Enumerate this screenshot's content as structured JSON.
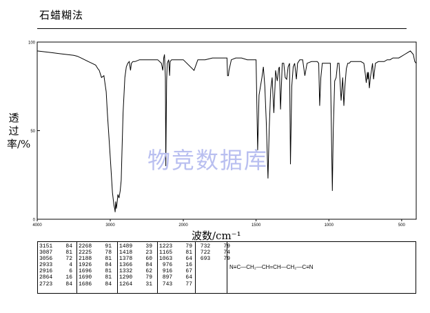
{
  "page": {
    "title": "石蜡糊法"
  },
  "chart_data": {
    "type": "line",
    "title": "",
    "xlabel": "波数/cm⁻¹",
    "ylabel": "透过率/%",
    "xlim": [
      4000,
      400
    ],
    "ylim": [
      0,
      100
    ],
    "x_ticks": [
      4000,
      3000,
      2000,
      1500,
      1000,
      500
    ],
    "x_tick_labels": [
      "4000",
      "3000",
      "2000",
      "1500",
      "1000",
      "500"
    ],
    "y_ticks": [
      0,
      50,
      100
    ],
    "y_tick_labels": [
      "0",
      "50",
      "100"
    ],
    "grid": false,
    "series": [
      {
        "name": "",
        "x": [
          4000,
          3900,
          3800,
          3700,
          3600,
          3500,
          3450,
          3400,
          3350,
          3300,
          3250,
          3200,
          3170,
          3151,
          3120,
          3087,
          3070,
          3056,
          3040,
          3000,
          2970,
          2950,
          2940,
          2933,
          2925,
          2916,
          2905,
          2895,
          2880,
          2864,
          2850,
          2840,
          2825,
          2800,
          2780,
          2760,
          2740,
          2723,
          2710,
          2690,
          2660,
          2600,
          2500,
          2400,
          2350,
          2300,
          2280,
          2268,
          2258,
          2245,
          2240,
          2228,
          2220,
          2200,
          2188,
          2180,
          2160,
          2100,
          2000,
          1926,
          1900,
          1850,
          1800,
          1750,
          1700,
          1696,
          1690,
          1686,
          1670,
          1640,
          1600,
          1560,
          1540,
          1520,
          1500,
          1489,
          1480,
          1470,
          1460,
          1450,
          1440,
          1430,
          1418,
          1410,
          1400,
          1390,
          1378,
          1370,
          1366,
          1355,
          1345,
          1340,
          1332,
          1320,
          1310,
          1300,
          1290,
          1280,
          1270,
          1264,
          1255,
          1245,
          1235,
          1223,
          1215,
          1200,
          1180,
          1165,
          1150,
          1120,
          1100,
          1080,
          1070,
          1063,
          1055,
          1045,
          1035,
          1025,
          1015,
          1000,
          990,
          976,
          970,
          960,
          950,
          940,
          930,
          916,
          905,
          897,
          890,
          880,
          870,
          860,
          850,
          840,
          820,
          800,
          780,
          760,
          750,
          743,
          735,
          732,
          728,
          722,
          715,
          700,
          693,
          680,
          660,
          640,
          620,
          600,
          580,
          560,
          540,
          520,
          500,
          480,
          460,
          440,
          420,
          410,
          400
        ],
        "y": [
          95,
          94.5,
          94,
          93.5,
          93,
          92.5,
          92,
          91,
          90,
          89,
          88,
          87,
          85,
          84,
          80,
          81,
          76,
          72,
          60,
          35,
          15,
          8,
          6,
          4,
          10,
          6,
          10,
          14,
          12,
          16,
          22,
          38,
          60,
          80,
          86,
          88,
          89,
          84,
          88,
          89,
          89,
          90,
          90,
          90,
          90,
          88,
          84,
          91,
          93,
          80,
          30,
          78,
          88,
          90,
          81,
          89,
          90,
          90,
          90,
          84,
          90,
          90,
          91,
          91,
          91,
          81,
          81,
          84,
          90,
          91,
          91,
          90,
          90,
          90,
          90,
          39,
          70,
          75,
          80,
          86,
          75,
          55,
          23,
          50,
          73,
          80,
          60,
          75,
          84,
          78,
          85,
          86,
          62,
          88,
          88,
          80,
          79,
          86,
          88,
          31,
          75,
          86,
          88,
          79,
          88,
          90,
          90,
          81,
          88,
          89,
          89,
          89,
          88,
          64,
          80,
          88,
          88,
          88,
          88,
          88,
          88,
          16,
          50,
          78,
          80,
          88,
          88,
          67,
          80,
          64,
          75,
          85,
          88,
          88,
          89,
          89,
          89,
          89,
          89,
          88,
          82,
          77,
          83,
          79,
          83,
          74,
          80,
          88,
          79,
          88,
          89,
          89,
          89,
          90,
          90,
          91,
          91,
          91,
          92,
          93,
          94,
          95,
          93,
          89,
          88
        ]
      }
    ]
  },
  "peak_table": [
    [
      [
        "3151",
        "84"
      ],
      [
        "3087",
        "81"
      ],
      [
        "3056",
        "72"
      ],
      [
        "2933",
        "4"
      ],
      [
        "2916",
        "6"
      ],
      [
        "2864",
        "16"
      ],
      [
        "2723",
        "84"
      ]
    ],
    [
      [
        "2268",
        "91"
      ],
      [
        "2225",
        "78"
      ],
      [
        "2188",
        "81"
      ],
      [
        "1926",
        "84"
      ],
      [
        "1696",
        "81"
      ],
      [
        "1690",
        "81"
      ],
      [
        "1686",
        "84"
      ]
    ],
    [
      [
        "1489",
        "39"
      ],
      [
        "1418",
        "23"
      ],
      [
        "1378",
        "60"
      ],
      [
        "1366",
        "84"
      ],
      [
        "1332",
        "62"
      ],
      [
        "1290",
        "79"
      ],
      [
        "1264",
        "31"
      ]
    ],
    [
      [
        "1223",
        "79"
      ],
      [
        "1165",
        "81"
      ],
      [
        "1063",
        "64"
      ],
      [
        "976",
        "16"
      ],
      [
        "916",
        "67"
      ],
      [
        "897",
        "64"
      ],
      [
        "743",
        "77"
      ]
    ],
    [
      [
        "732",
        "79"
      ],
      [
        "722",
        "74"
      ],
      [
        "693",
        "79"
      ]
    ]
  ],
  "structure": {
    "formula": "N≡C—CH₂—CH=CH—CH₂—C≡N"
  },
  "watermark": "物竞数据库"
}
